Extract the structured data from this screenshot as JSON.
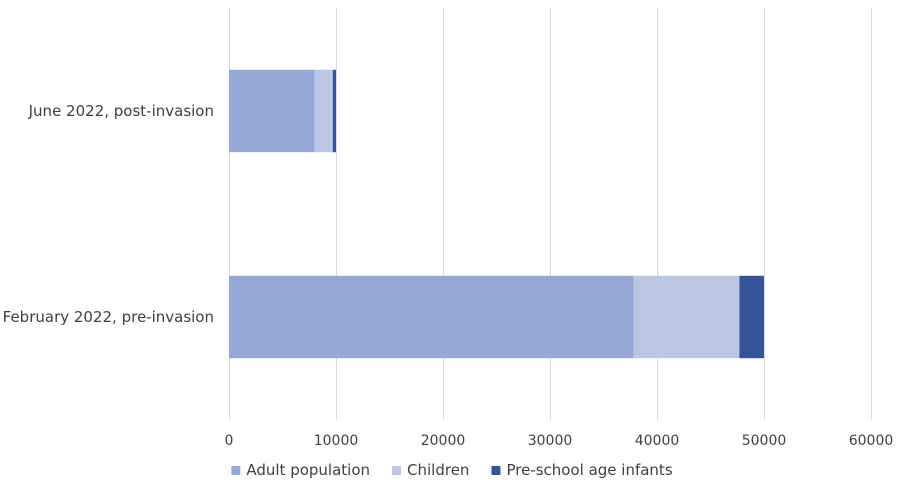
{
  "chart_data": {
    "type": "bar",
    "orientation": "horizontal",
    "stacked": true,
    "categories": [
      "June 2022, post-invasion",
      "February 2022, pre-invasion"
    ],
    "series": [
      {
        "name": "Adult population",
        "values": [
          8000,
          37800
        ],
        "color": "#95a9d8"
      },
      {
        "name": "Children",
        "values": [
          1700,
          9900
        ],
        "color": "#b9c6e4"
      },
      {
        "name": "Pre-school age infants",
        "values": [
          300,
          2300
        ],
        "color": "#34559a"
      }
    ],
    "xlim": [
      0,
      60000
    ],
    "xticks": [
      0,
      10000,
      20000,
      30000,
      40000,
      50000,
      60000
    ],
    "xtick_labels": [
      "0",
      "10000",
      "20000",
      "30000",
      "40000",
      "50000",
      "60000"
    ],
    "grid": "vertical",
    "legend_position": "bottom",
    "title": "",
    "xlabel": "",
    "ylabel": ""
  }
}
